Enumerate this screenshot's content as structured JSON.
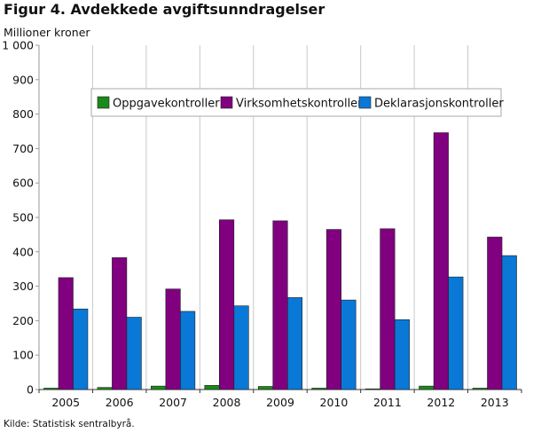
{
  "title": "Figur 4. Avdekkede avgiftsunndragelser",
  "y_unit_label": "Millioner kroner",
  "source": "Kilde: Statistisk sentralbyrå.",
  "chart_data": {
    "type": "bar",
    "title": "Figur 4. Avdekkede avgiftsunndragelser",
    "ylabel": "Millioner kroner",
    "xlabel": "",
    "ylim": [
      0,
      1000
    ],
    "y_ticks": [
      0,
      100,
      200,
      300,
      400,
      500,
      600,
      700,
      800,
      900,
      1000
    ],
    "y_tick_labels": [
      "0",
      "100",
      "200",
      "300",
      "400",
      "500",
      "600",
      "700",
      "800",
      "900",
      "1 000"
    ],
    "categories": [
      "2005",
      "2006",
      "2007",
      "2008",
      "2009",
      "2010",
      "2011",
      "2012",
      "2013"
    ],
    "grid": "vertical-category-separators",
    "legend_position": "top-center-inside",
    "series": [
      {
        "name": "Oppgavekontroller",
        "color": "#1a8a1a",
        "values": [
          4,
          6,
          10,
          12,
          9,
          4,
          2,
          10,
          4
        ]
      },
      {
        "name": "Virksomhetskontroller",
        "color": "#800080",
        "values": [
          325,
          383,
          292,
          493,
          490,
          465,
          467,
          746,
          443
        ]
      },
      {
        "name": "Deklarasjonskontroller",
        "color": "#0a78d7",
        "values": [
          234,
          210,
          227,
          243,
          267,
          260,
          203,
          327,
          389
        ]
      }
    ]
  }
}
